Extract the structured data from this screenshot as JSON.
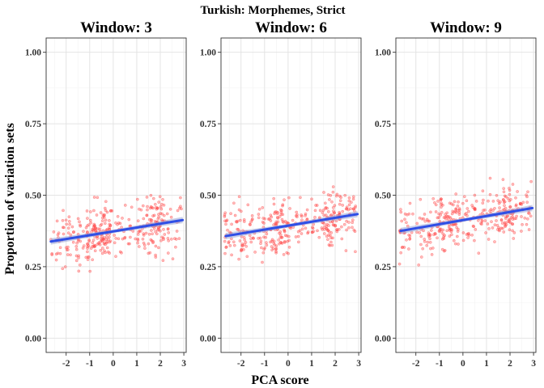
{
  "chart_data": {
    "type": "scatter",
    "title": "Turkish: Morphemes, Strict",
    "xlabel": "PCA score",
    "ylabel": "Proportion of variation sets",
    "xlim": [
      -2.85,
      3.1
    ],
    "ylim": [
      -0.05,
      1.05
    ],
    "x_ticks": [
      "-2",
      "-1",
      "0",
      "1",
      "2",
      "3"
    ],
    "y_ticks": [
      "0.00",
      "0.25",
      "0.50",
      "0.75",
      "1.00"
    ],
    "grid": true,
    "point_color": "#ff4040",
    "line_color": "#2f4fe6",
    "panels": [
      {
        "title": "Window: 3",
        "fit_start": [
          -2.65,
          0.338
        ],
        "fit_end": [
          2.95,
          0.413
        ],
        "point_center": 0.375,
        "point_spread": 0.055
      },
      {
        "title": "Window: 6",
        "fit_start": [
          -2.65,
          0.357
        ],
        "fit_end": [
          2.95,
          0.434
        ],
        "point_center": 0.395,
        "point_spread": 0.055
      },
      {
        "title": "Window: 9",
        "fit_start": [
          -2.65,
          0.375
        ],
        "fit_end": [
          2.95,
          0.455
        ],
        "point_center": 0.415,
        "point_spread": 0.055
      }
    ]
  }
}
